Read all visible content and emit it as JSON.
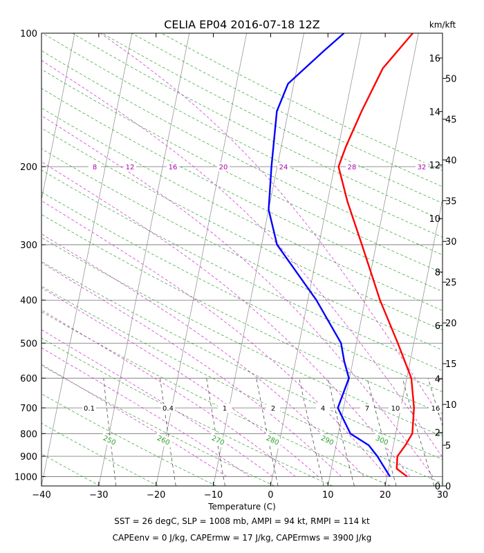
{
  "chart_data": {
    "type": "line",
    "title": "CELIA EP04 2016-07-18 12Z",
    "xlabel": "Temperature (C)",
    "right_axis_label": "km/kft",
    "xlim": [
      -40,
      30
    ],
    "ylim_hpa": [
      1050,
      100
    ],
    "y_scale": "log-pressure",
    "x_ticks": [
      -40,
      -30,
      -20,
      -10,
      0,
      10,
      20,
      30
    ],
    "x_tick_labels": [
      "−40",
      "−30",
      "−20",
      "−10",
      "0",
      "10",
      "20",
      "30"
    ],
    "pressure_ticks": [
      100,
      200,
      300,
      400,
      500,
      600,
      700,
      800,
      900,
      1000
    ],
    "height_km_ticks": [
      0,
      2,
      4,
      6,
      8,
      10,
      12,
      14,
      16
    ],
    "height_kft_ticks": [
      0,
      5,
      10,
      15,
      20,
      25,
      30,
      35,
      40,
      45,
      50
    ],
    "dry_adiabat_labels": [
      "250",
      "260",
      "270",
      "280",
      "290",
      "300"
    ],
    "mixing_ratio_labels": [
      "0.1",
      "0.4",
      "1",
      "2",
      "4",
      "7",
      "10",
      "16"
    ],
    "moist_adiabat_labels": [
      "8",
      "12",
      "16",
      "20",
      "24",
      "28",
      "32"
    ],
    "series": [
      {
        "color": "#ff0000",
        "points": [
          [
            23.5,
            1000
          ],
          [
            21.4,
            960
          ],
          [
            21.1,
            900
          ],
          [
            22.1,
            850
          ],
          [
            22.9,
            800
          ],
          [
            22.3,
            700
          ],
          [
            20.8,
            600
          ],
          [
            17.2,
            500
          ],
          [
            12.6,
            400
          ],
          [
            7.5,
            300
          ],
          [
            3.5,
            240
          ],
          [
            0.7,
            200
          ],
          [
            1.3,
            180
          ],
          [
            2.8,
            150
          ],
          [
            5.0,
            120
          ],
          [
            9.0,
            100
          ]
        ]
      },
      {
        "color": "#0000ff",
        "points": [
          [
            20.5,
            1000
          ],
          [
            17.6,
            900
          ],
          [
            15.7,
            850
          ],
          [
            12.1,
            800
          ],
          [
            9.0,
            700
          ],
          [
            9.9,
            600
          ],
          [
            8.5,
            550
          ],
          [
            7.3,
            500
          ],
          [
            1.5,
            400
          ],
          [
            -7.3,
            300
          ],
          [
            -10.0,
            250
          ],
          [
            -11.0,
            200
          ],
          [
            -12.0,
            150
          ],
          [
            -11.0,
            130
          ],
          [
            -6.0,
            110
          ],
          [
            -3.0,
            100
          ]
        ]
      }
    ]
  },
  "footer": {
    "line1": "SST = 26 degC, SLP = 1008 mb, AMPI = 94 kt, RMPI = 114 kt",
    "line2": "CAPEenv = 0 J/kg, CAPErmw = 17 J/kg, CAPErmws = 3900 J/kg"
  }
}
